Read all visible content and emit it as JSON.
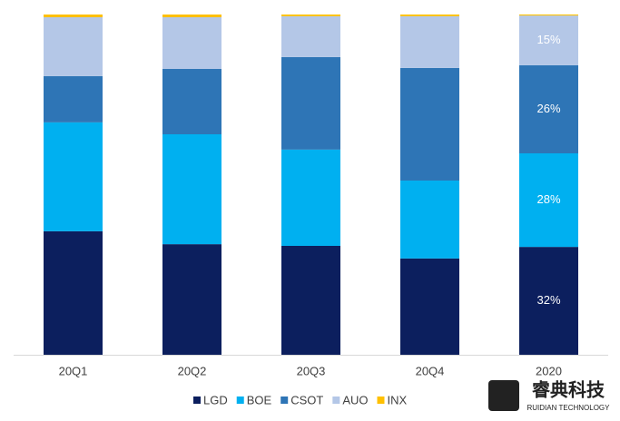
{
  "chart_data": {
    "type": "stacked_bar",
    "categories": [
      "20Q1",
      "20Q2",
      "20Q3",
      "20Q4",
      "2020"
    ],
    "series": [
      {
        "name": "LGD",
        "color": "#0c1f5e",
        "values": [
          36.3,
          32.5,
          32,
          28.3,
          31.7
        ],
        "value_labels": [
          null,
          null,
          null,
          null,
          "32%"
        ]
      },
      {
        "name": "BOE",
        "color": "#00b0f0",
        "values": [
          32,
          32.3,
          28.3,
          22.9,
          27.5
        ],
        "value_labels": [
          null,
          null,
          null,
          null,
          "28%"
        ]
      },
      {
        "name": "CSOT",
        "color": "#2e75b6",
        "values": [
          13.6,
          19.2,
          27.2,
          33.1,
          25.9
        ],
        "value_labels": [
          null,
          null,
          null,
          null,
          "26%"
        ]
      },
      {
        "name": "AUO",
        "color": "#b4c7e7",
        "values": [
          17.3,
          15.2,
          12,
          15.2,
          14.6
        ],
        "value_labels": [
          null,
          null,
          null,
          null,
          "15%"
        ]
      },
      {
        "name": "INX",
        "color": "#ffc000",
        "values": [
          0.8,
          0.8,
          0.5,
          0.5,
          0.3
        ]
      }
    ],
    "ylim": [
      0,
      100
    ],
    "legend": "bottom"
  },
  "logo": {
    "name": "睿典科技",
    "subtitle": "RUIDIAN TECHNOLOGY"
  }
}
